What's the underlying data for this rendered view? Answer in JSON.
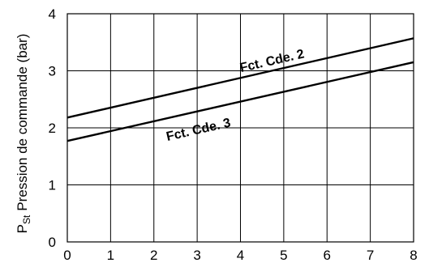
{
  "chart_data": {
    "type": "line",
    "xlabel": "",
    "ylabel": {
      "symbol": "P",
      "subscript": "St",
      "text": "Pression de commande (bar)"
    },
    "xlim": [
      0,
      8
    ],
    "ylim": [
      0,
      4
    ],
    "xticks": [
      "0",
      "1",
      "2",
      "3",
      "4",
      "5",
      "6",
      "7",
      "8"
    ],
    "yticks": [
      "0",
      "1",
      "2",
      "3",
      "4"
    ],
    "grid": true,
    "series": [
      {
        "name": "Fct. Cde. 2",
        "x": [
          0,
          8
        ],
        "y": [
          2.18,
          3.57
        ]
      },
      {
        "name": "Fct. Cde. 3",
        "x": [
          0,
          8
        ],
        "y": [
          1.77,
          3.15
        ]
      }
    ],
    "annotations": [
      {
        "text": "Fct. Cde. 2",
        "series": 0
      },
      {
        "text": "Fct. Cde. 3",
        "series": 1
      }
    ]
  }
}
